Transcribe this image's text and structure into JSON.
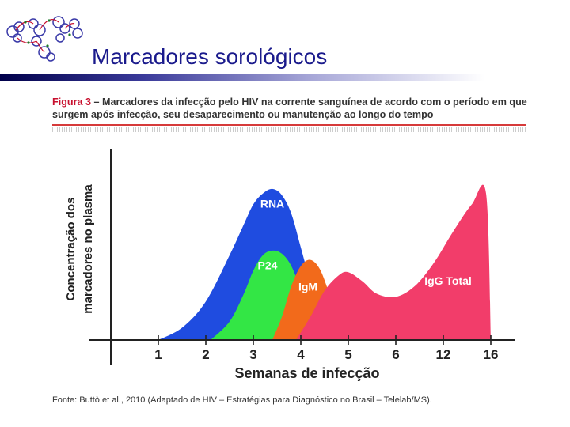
{
  "slide": {
    "title": "Marcadores sorológicos"
  },
  "logo": {
    "icon": "molecule-logo-icon"
  },
  "figure": {
    "label": "Figura 3",
    "caption_text": "– Marcadores da infecção pelo HIV na corrente sanguínea de acordo com o período em que surgem após infecção, seu desaparecimento ou manutenção ao longo do tempo",
    "source": "Fonte: Buttò et al., 2010 (Adaptado de HIV – Estratégias para Diagnóstico no Brasil – Telelab/MS)."
  },
  "chart_data": {
    "type": "area",
    "xlabel": "Semanas de infecção",
    "ylabel_lines": [
      "Concentração dos",
      "marcadores no plasma"
    ],
    "x_ticks": [
      "1",
      "2",
      "3",
      "4",
      "5",
      "6",
      "12",
      "16"
    ],
    "x_tick_positions": [
      1,
      2,
      3,
      4,
      5,
      6,
      7,
      8
    ],
    "xlim": [
      0,
      8.5
    ],
    "ylim": [
      0,
      1
    ],
    "grid": false,
    "legend": "none",
    "series": [
      {
        "name": "RNA",
        "color": "#1f4ce0",
        "x": [
          1,
          1.5,
          2,
          2.5,
          2.8,
          3,
          3.2,
          3.4,
          3.6,
          3.8,
          4,
          4.2,
          4.4,
          4.6,
          4.8
        ],
        "y": [
          0,
          0.08,
          0.25,
          0.55,
          0.75,
          0.88,
          0.95,
          0.98,
          0.94,
          0.82,
          0.6,
          0.38,
          0.2,
          0.08,
          0
        ]
      },
      {
        "name": "P24",
        "color": "#33e645",
        "x": [
          2.1,
          2.5,
          2.8,
          3,
          3.2,
          3.4,
          3.6,
          3.8,
          4,
          4.2,
          4.4
        ],
        "y": [
          0,
          0.12,
          0.3,
          0.45,
          0.55,
          0.58,
          0.56,
          0.48,
          0.32,
          0.12,
          0
        ]
      },
      {
        "name": "IgM",
        "color": "#f26a1b",
        "x": [
          3.4,
          3.6,
          3.8,
          4,
          4.2,
          4.4,
          4.6,
          4.8,
          5
        ],
        "y": [
          0,
          0.15,
          0.35,
          0.48,
          0.52,
          0.46,
          0.3,
          0.12,
          0
        ]
      },
      {
        "name": "IgG Total",
        "color": "#f23d6a",
        "x": [
          3.9,
          4.2,
          4.5,
          4.8,
          5,
          5.3,
          5.6,
          6,
          6.4,
          6.8,
          7.2,
          7.6,
          7.9,
          8
        ],
        "y": [
          0,
          0.15,
          0.32,
          0.42,
          0.44,
          0.38,
          0.3,
          0.28,
          0.35,
          0.5,
          0.7,
          0.88,
          0.95,
          0
        ]
      }
    ]
  }
}
